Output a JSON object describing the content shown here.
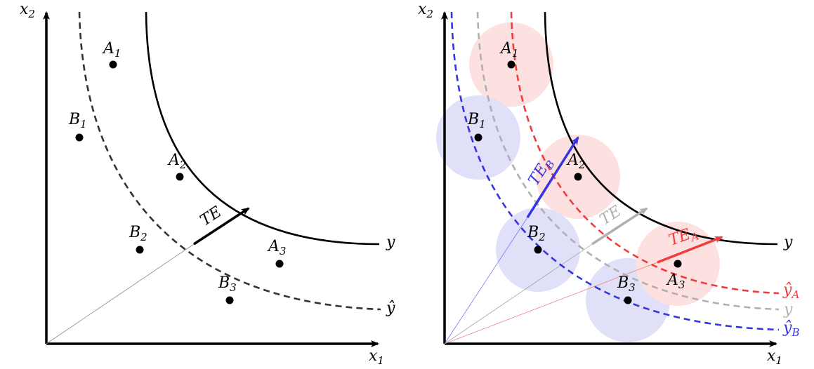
{
  "left_panel": {
    "axis_x_label": "x",
    "axis_x_sub": "1",
    "axis_y_label": "x",
    "axis_y_sub": "2",
    "frontier_label": "y",
    "estimated_label": "ŷ",
    "te_label": "TE",
    "points": [
      {
        "name": "A",
        "sub": "1"
      },
      {
        "name": "B",
        "sub": "1"
      },
      {
        "name": "A",
        "sub": "2"
      },
      {
        "name": "B",
        "sub": "2"
      },
      {
        "name": "A",
        "sub": "3"
      },
      {
        "name": "B",
        "sub": "3"
      }
    ]
  },
  "right_panel": {
    "axis_x_label": "x",
    "axis_x_sub": "1",
    "axis_y_label": "x",
    "axis_y_sub": "2",
    "frontier_label": "y",
    "estimated_a_label": "ŷ",
    "estimated_a_sub": "A",
    "estimated_grey_label": "y",
    "estimated_b_label": "ŷ",
    "estimated_b_sub": "B",
    "te_label": "TE",
    "te_a_label": "TE",
    "te_a_sub": "A",
    "te_b_label": "TE",
    "te_b_sub": "B",
    "points": [
      {
        "name": "A",
        "sub": "1"
      },
      {
        "name": "B",
        "sub": "1"
      },
      {
        "name": "A",
        "sub": "2"
      },
      {
        "name": "B",
        "sub": "2"
      },
      {
        "name": "A",
        "sub": "3"
      },
      {
        "name": "B",
        "sub": "3"
      }
    ]
  },
  "colors": {
    "red": "#f03c3c",
    "blue": "#3434e0",
    "grey": "#b0b0b0",
    "dark": "#333333",
    "red_circle": "#fde0e0",
    "blue_circle": "#e0e0f9"
  }
}
